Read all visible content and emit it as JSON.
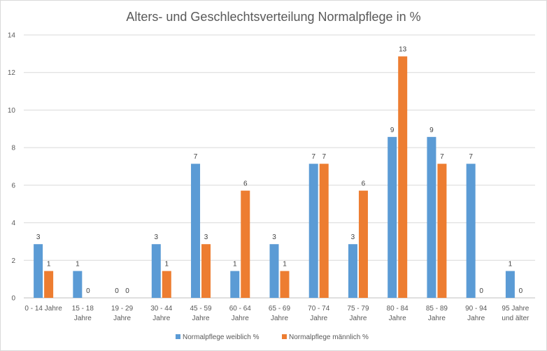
{
  "chart_data": {
    "type": "bar",
    "title": "Alters- und Geschlechtsverteilung Normalpflege in %",
    "xlabel": "",
    "ylabel": "",
    "ylim": [
      0,
      14
    ],
    "yticks": [
      0,
      2,
      4,
      6,
      8,
      10,
      12,
      14
    ],
    "grid": true,
    "legend_position": "bottom",
    "categories": [
      "0 - 14 Jahre",
      "15 - 18 Jahre",
      "19 - 29 Jahre",
      "30 - 44 Jahre",
      "45 - 59 Jahre",
      "60 - 64 Jahre",
      "65 - 69 Jahre",
      "70 - 74 Jahre",
      "75 - 79 Jahre",
      "80 - 84 Jahre",
      "85 - 89 Jahre",
      "90 - 94 Jahre",
      "95 Jahre und älter"
    ],
    "category_lines": [
      [
        "0 - 14 Jahre"
      ],
      [
        "15 - 18",
        "Jahre"
      ],
      [
        "19 - 29",
        "Jahre"
      ],
      [
        "30 - 44",
        "Jahre"
      ],
      [
        "45 - 59",
        "Jahre"
      ],
      [
        "60 - 64",
        "Jahre"
      ],
      [
        "65 - 69",
        "Jahre"
      ],
      [
        "70 - 74",
        "Jahre"
      ],
      [
        "75 - 79",
        "Jahre"
      ],
      [
        "80 - 84",
        "Jahre"
      ],
      [
        "85 - 89",
        "Jahre"
      ],
      [
        "90 - 94",
        "Jahre"
      ],
      [
        "95 Jahre",
        "und älter"
      ]
    ],
    "series": [
      {
        "name": "Normalpflege weiblich %",
        "color": "#5b9bd5",
        "values": [
          2.86,
          1.43,
          0,
          2.86,
          7.14,
          1.43,
          2.86,
          7.14,
          2.86,
          8.57,
          8.57,
          7.14,
          1.43
        ],
        "labels": [
          "3",
          "1",
          "0",
          "3",
          "7",
          "1",
          "3",
          "7",
          "3",
          "9",
          "9",
          "7",
          "1"
        ]
      },
      {
        "name": "Normalpflege männlich %",
        "color": "#ed7d31",
        "values": [
          1.43,
          0,
          0,
          1.43,
          2.86,
          5.71,
          1.43,
          7.14,
          5.71,
          12.86,
          7.14,
          0,
          0
        ],
        "labels": [
          "1",
          "0",
          "0",
          "1",
          "3",
          "6",
          "1",
          "7",
          "6",
          "13",
          "7",
          "0",
          "0"
        ]
      }
    ]
  }
}
